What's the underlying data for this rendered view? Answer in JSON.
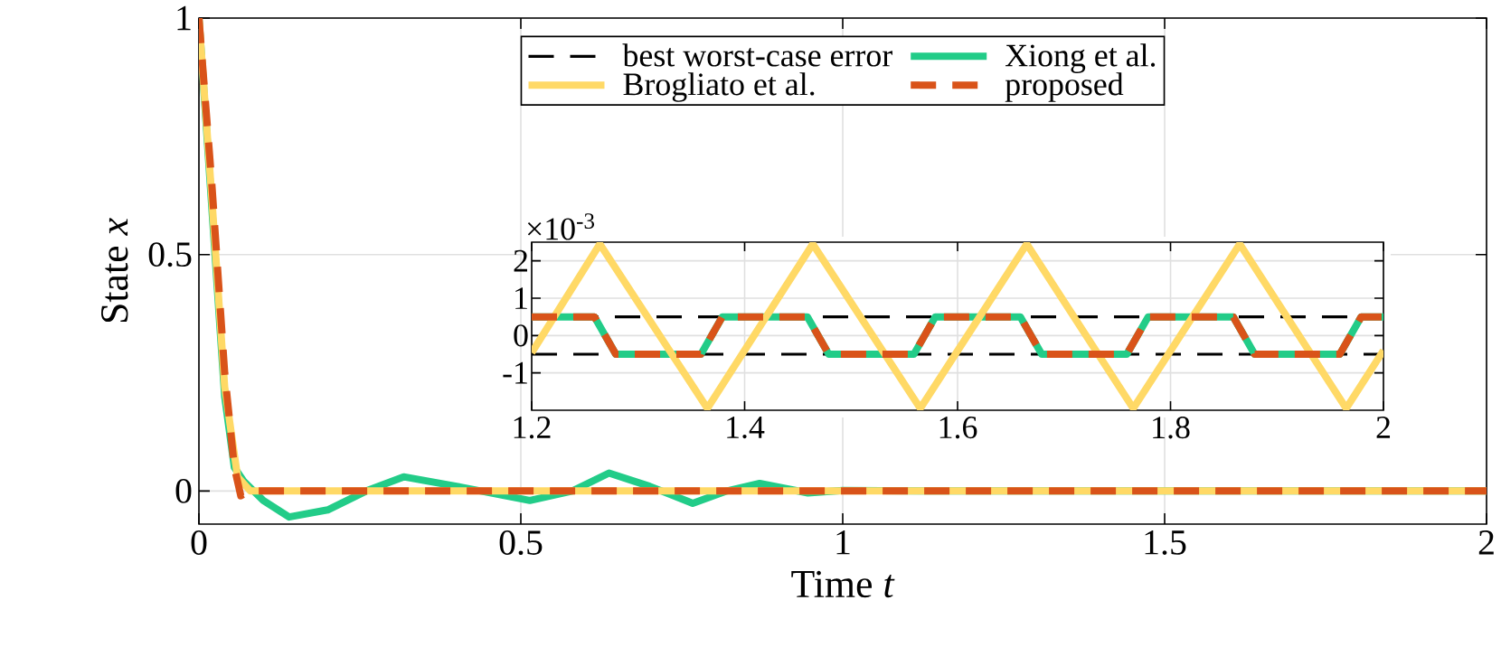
{
  "chart_data": [
    {
      "type": "line",
      "xlabel": "Time *t*",
      "ylabel": "State *x*",
      "xlim": [
        0,
        2
      ],
      "ylim": [
        -0.07,
        1
      ],
      "xticks": [
        0,
        0.5,
        1,
        1.5,
        2
      ],
      "yticks": [
        0,
        0.5,
        1
      ],
      "grid": true,
      "legend": "top",
      "series": [
        {
          "name": "Xiong et al.",
          "color": "#22cc88",
          "line_style": "solid",
          "x": [
            0,
            0.02,
            0.04,
            0.055,
            0.07,
            0.1,
            0.14,
            0.2,
            0.26,
            0.318,
            0.4,
            0.514,
            0.58,
            0.637,
            0.7,
            0.767,
            0.82,
            0.871,
            0.946,
            1.0,
            1.2,
            2
          ],
          "values": [
            1,
            0.6,
            0.2,
            0.05,
            0.02,
            -0.02,
            -0.055,
            -0.04,
            0.0,
            0.03,
            0.01,
            -0.02,
            0.0,
            0.038,
            0.01,
            -0.026,
            0.0,
            0.016,
            -0.004,
            0.001,
            0,
            0
          ]
        },
        {
          "name": "Brogliato et al.",
          "color": "#ffd966",
          "line_style": "solid",
          "x": [
            0,
            0.02,
            0.04,
            0.06,
            0.08,
            2
          ],
          "values": [
            1,
            0.62,
            0.22,
            0.03,
            0,
            0
          ]
        },
        {
          "name": "proposed",
          "color": "#d95319",
          "line_style": "dashed",
          "x": [
            0,
            0.02,
            0.04,
            0.055,
            0.065,
            0.08,
            2
          ],
          "values": [
            1,
            0.65,
            0.25,
            0.05,
            -0.01,
            0,
            0
          ]
        }
      ]
    },
    {
      "type": "line",
      "xlim": [
        1.2,
        2
      ],
      "ylim": [
        -2,
        2.5
      ],
      "xticks": [
        1.2,
        1.4,
        1.6,
        1.8,
        2
      ],
      "yticks": [
        -1,
        0,
        1,
        2
      ],
      "grid": true,
      "annotations": [
        "×10$^{-3}$"
      ],
      "ref_lines": [
        {
          "axis": "y",
          "value": 0.5,
          "label": "best worst-case error",
          "color": "#000000",
          "line_style": "dashed"
        },
        {
          "axis": "y",
          "value": -0.5,
          "color": "#000000",
          "line_style": "dashed"
        }
      ],
      "series": [
        {
          "color": "#22cc88",
          "line_style": "solid",
          "x": [
            1.2,
            1.259,
            1.279,
            1.359,
            1.379,
            1.459,
            1.479,
            1.559,
            1.579,
            1.659,
            1.679,
            1.759,
            1.779,
            1.859,
            1.879,
            1.959,
            1.979,
            2
          ],
          "values": [
            0.5,
            0.5,
            -0.5,
            -0.5,
            0.5,
            0.5,
            -0.5,
            -0.5,
            0.5,
            0.5,
            -0.5,
            -0.5,
            0.5,
            0.5,
            -0.5,
            -0.5,
            0.5,
            0.5
          ]
        },
        {
          "color": "#ffd966",
          "line_style": "solid",
          "x": [
            1.2,
            1.264,
            1.365,
            1.464,
            1.565,
            1.665,
            1.765,
            1.865,
            1.965,
            2
          ],
          "values": [
            -0.46,
            2.45,
            -1.95,
            2.45,
            -1.95,
            2.45,
            -1.95,
            2.45,
            -1.95,
            -0.4
          ]
        },
        {
          "color": "#d95319",
          "line_style": "dashed",
          "x": [
            1.2,
            1.259,
            1.279,
            1.359,
            1.379,
            1.459,
            1.479,
            1.559,
            1.579,
            1.659,
            1.679,
            1.759,
            1.779,
            1.859,
            1.879,
            1.959,
            1.979,
            2
          ],
          "values": [
            0.5,
            0.5,
            -0.5,
            -0.5,
            0.5,
            0.5,
            -0.5,
            -0.5,
            0.5,
            0.5,
            -0.5,
            -0.5,
            0.5,
            0.5,
            -0.5,
            -0.5,
            0.5,
            0.5
          ]
        }
      ]
    }
  ]
}
